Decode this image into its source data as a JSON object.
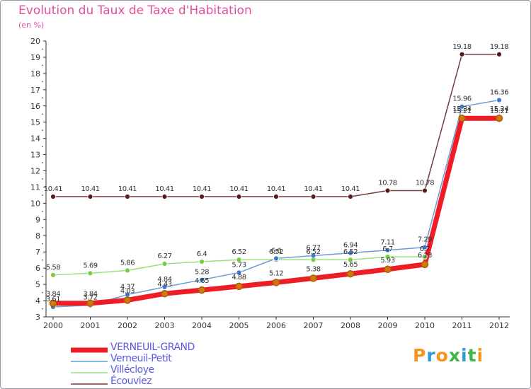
{
  "title": "Evolution du Taux de Taxe d'Habitation",
  "unit_label": "(en %)",
  "logo": {
    "letters": [
      "P",
      "r",
      "o",
      "x",
      "i",
      "t",
      "i"
    ],
    "colors": [
      "#f7941d",
      "#2e9ad6",
      "#f7941d",
      "#3cb54a",
      "#2e9ad6",
      "#3cb54a",
      "#f7941d"
    ]
  },
  "legend": [
    {
      "label": "VERNEUIL-GRAND",
      "color": "#ee1c24",
      "stroke": 7
    },
    {
      "label": "Verneuil-Petit",
      "color": "#6a9cd8",
      "stroke": 1.5
    },
    {
      "label": "Villécloye",
      "color": "#99e07a",
      "stroke": 1.5
    },
    {
      "label": "Écouviez",
      "color": "#7a3a3a",
      "stroke": 1.5
    }
  ],
  "chart_data": {
    "type": "line",
    "title": "Evolution du Taux de Taxe d'Habitation",
    "ylabel": "(en %)",
    "x": [
      "2000",
      "2001",
      "2002",
      "2003",
      "2004",
      "2005",
      "2006",
      "2007",
      "2008",
      "2009",
      "2010",
      "2011",
      "2012"
    ],
    "ylim": [
      3,
      20
    ],
    "yticks": [
      3,
      4,
      5,
      6,
      7,
      8,
      9,
      10,
      11,
      12,
      13,
      14,
      15,
      16,
      17,
      18,
      19,
      20
    ],
    "grid": false,
    "legend_position": "bottom-left",
    "series": [
      {
        "name": "VERNEUIL-GRAND",
        "color": "#ee1c24",
        "values": [
          3.84,
          3.84,
          4.03,
          4.43,
          4.65,
          4.88,
          5.12,
          5.38,
          5.65,
          5.93,
          6.23,
          15.24,
          15.24
        ]
      },
      {
        "name": "Verneuil-Petit",
        "color": "#6a9cd8",
        "values": [
          3.61,
          3.72,
          4.37,
          4.84,
          5.28,
          5.73,
          6.6,
          6.77,
          6.94,
          7.11,
          7.29,
          15.96,
          16.36
        ]
      },
      {
        "name": "Villécloye",
        "color": "#99e07a",
        "values": [
          5.58,
          5.69,
          5.86,
          6.27,
          6.4,
          6.52,
          6.52,
          6.52,
          6.52,
          6.7,
          6.7,
          15.21,
          15.21
        ]
      },
      {
        "name": "Écouviez",
        "color": "#7a3a3a",
        "values": [
          10.41,
          10.41,
          10.41,
          10.41,
          10.41,
          10.41,
          10.41,
          10.41,
          10.41,
          10.78,
          10.78,
          19.18,
          19.18
        ]
      }
    ],
    "data_labels": [
      {
        "series": 0,
        "labels": [
          "3.84",
          "3.84",
          "4.03",
          "4.43",
          "4.65",
          "4.88",
          "5.12",
          "5.38",
          "5.65",
          "5.93",
          "6.23",
          "15.24",
          "15.24"
        ]
      },
      {
        "series": 1,
        "labels": [
          "3.61",
          "3.72",
          "4.37",
          "4.84",
          "5.28",
          "5.73",
          "6.6",
          "6.77",
          "6.94",
          "7.11",
          "7.29",
          "15.96",
          "16.36"
        ]
      },
      {
        "series": 2,
        "labels": [
          "5.58",
          "5.69",
          "5.86",
          "6.27",
          "6.4",
          "6.52",
          "6.52",
          "6.52",
          "6.52",
          "6.7",
          "6.7",
          "15.21",
          "15.21"
        ]
      },
      {
        "series": 3,
        "labels": [
          "10.41",
          "10.41",
          "10.41",
          "10.41",
          "10.41",
          "10.41",
          "10.41",
          "10.41",
          "10.41",
          "10.78",
          "10.78",
          "19.18",
          "19.18"
        ]
      }
    ]
  }
}
